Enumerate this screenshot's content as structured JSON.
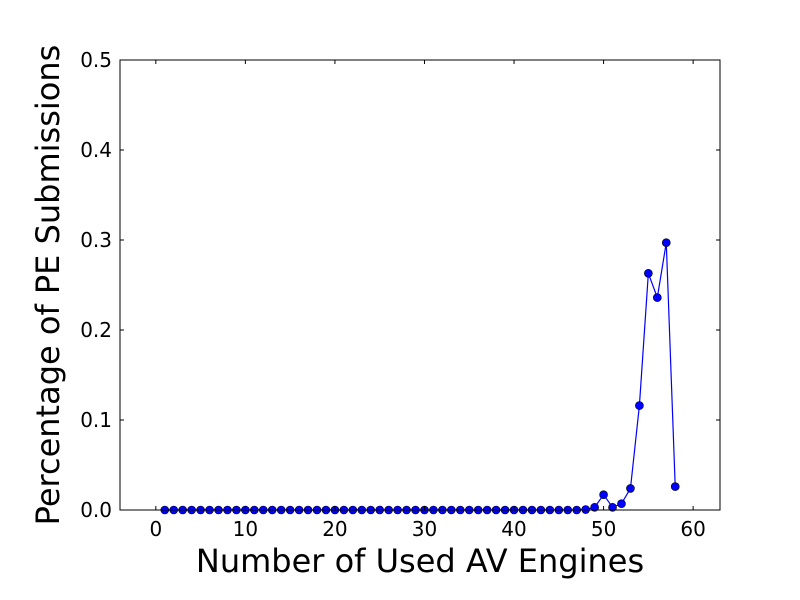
{
  "chart_data": {
    "type": "line",
    "title": "",
    "xlabel": "Number of Used AV Engines",
    "ylabel": "Percentage of PE Submissions",
    "xlim": [
      -4,
      63
    ],
    "ylim": [
      0,
      0.5
    ],
    "xticks": [
      0,
      10,
      20,
      30,
      40,
      50,
      60
    ],
    "xtick_labels": [
      "0",
      "10",
      "20",
      "30",
      "40",
      "50",
      "60"
    ],
    "yticks": [
      0,
      0.1,
      0.2,
      0.3,
      0.4,
      0.5
    ],
    "ytick_labels": [
      "0.0",
      "0.1",
      "0.2",
      "0.3",
      "0.4",
      "0.5"
    ],
    "grid": false,
    "legend": "none",
    "marker": "circle",
    "color": "#0000ff",
    "series": [
      {
        "x": [
          1,
          2,
          3,
          4,
          5,
          6,
          7,
          8,
          9,
          10,
          11,
          12,
          13,
          14,
          15,
          16,
          17,
          18,
          19,
          20,
          21,
          22,
          23,
          24,
          25,
          26,
          27,
          28,
          29,
          30,
          31,
          32,
          33,
          34,
          35,
          36,
          37,
          38,
          39,
          40,
          41,
          42,
          43,
          44,
          45,
          46,
          47,
          48,
          49,
          50,
          51,
          52,
          53,
          54,
          55,
          56,
          57,
          58
        ],
        "y": [
          0,
          0,
          0,
          0,
          0,
          0,
          0,
          0,
          0,
          0,
          0,
          0,
          0,
          0,
          0,
          0,
          0,
          0,
          0,
          0,
          0,
          0,
          0,
          0,
          0,
          0,
          0,
          0,
          0,
          0,
          0,
          0,
          0,
          0,
          0,
          0,
          0,
          0,
          0,
          0,
          0,
          0,
          0,
          0,
          0,
          0,
          0,
          0.0005,
          0.003,
          0.017,
          0.003,
          0.007,
          0.024,
          0.116,
          0.263,
          0.236,
          0.297,
          0.026
        ]
      }
    ]
  }
}
